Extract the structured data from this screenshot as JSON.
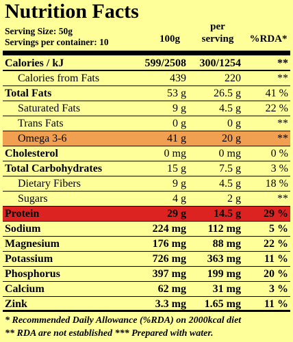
{
  "title": "Nutrition Facts",
  "serving_size": "Serving Size: 50g",
  "servings_per_container": "Servings per container: 10",
  "columns": {
    "per100": "100g",
    "per_serving_line1": "per",
    "per_serving_line2": "serving",
    "rda": "%RDA*"
  },
  "colors": {
    "background": "#ffff99",
    "highlight_orange": "#f0a050",
    "highlight_red": "#dd2222"
  },
  "rows": [
    {
      "label": "Calories / kJ",
      "v100": "599/2508",
      "vserv": "300/1254",
      "rda": "**",
      "style": "bold",
      "indent": false
    },
    {
      "label": "Calories from Fats",
      "v100": "439",
      "vserv": "220",
      "rda": "**",
      "style": "",
      "indent": true
    },
    {
      "label": "Total Fats",
      "v100": "53 g",
      "vserv": "26.5 g",
      "rda": "41 %",
      "style": "bold-label",
      "indent": false
    },
    {
      "label": "Saturated Fats",
      "v100": "9 g",
      "vserv": "4.5 g",
      "rda": "22 %",
      "style": "",
      "indent": true
    },
    {
      "label": "Trans Fats",
      "v100": "0 g",
      "vserv": "0 g",
      "rda": "**",
      "style": "",
      "indent": true
    },
    {
      "label": "Omega 3-6",
      "v100": "41 g",
      "vserv": "20 g",
      "rda": "**",
      "style": "orange",
      "indent": true
    },
    {
      "label": "Cholesterol",
      "v100": "0 mg",
      "vserv": "0 mg",
      "rda": "0 %",
      "style": "bold-label",
      "indent": false
    },
    {
      "label": "Total Carbohydrates",
      "v100": "15 g",
      "vserv": "7.5 g",
      "rda": "3 %",
      "style": "bold-label",
      "indent": false
    },
    {
      "label": "Dietary Fibers",
      "v100": "9 g",
      "vserv": "4.5 g",
      "rda": "18 %",
      "style": "",
      "indent": true
    },
    {
      "label": "Sugars",
      "v100": "4 g",
      "vserv": "2 g",
      "rda": "**",
      "style": "",
      "indent": true
    },
    {
      "label": "Protein",
      "v100": "29 g",
      "vserv": "14.5 g",
      "rda": "29 %",
      "style": "red",
      "indent": false
    },
    {
      "label": "Sodium",
      "v100": "224 mg",
      "vserv": "112 mg",
      "rda": "5 %",
      "style": "bold",
      "indent": false
    },
    {
      "label": "Magnesium",
      "v100": "176 mg",
      "vserv": "88 mg",
      "rda": "22 %",
      "style": "bold",
      "indent": false
    },
    {
      "label": "Potassium",
      "v100": "726 mg",
      "vserv": "363 mg",
      "rda": "11 %",
      "style": "bold",
      "indent": false
    },
    {
      "label": "Phosphorus",
      "v100": "397 mg",
      "vserv": "199 mg",
      "rda": "20 %",
      "style": "bold",
      "indent": false
    },
    {
      "label": "Calcium",
      "v100": "62 mg",
      "vserv": "31 mg",
      "rda": "3 %",
      "style": "bold",
      "indent": false
    },
    {
      "label": "Zink",
      "v100": "3.3 mg",
      "vserv": "1.65 mg",
      "rda": "11 %",
      "style": "bold",
      "indent": false
    }
  ],
  "footer_line1": "* Recommended Daily Allowance (%RDA) on 2000kcal diet",
  "footer_line2": "** RDA are not established *** Prepared with water."
}
